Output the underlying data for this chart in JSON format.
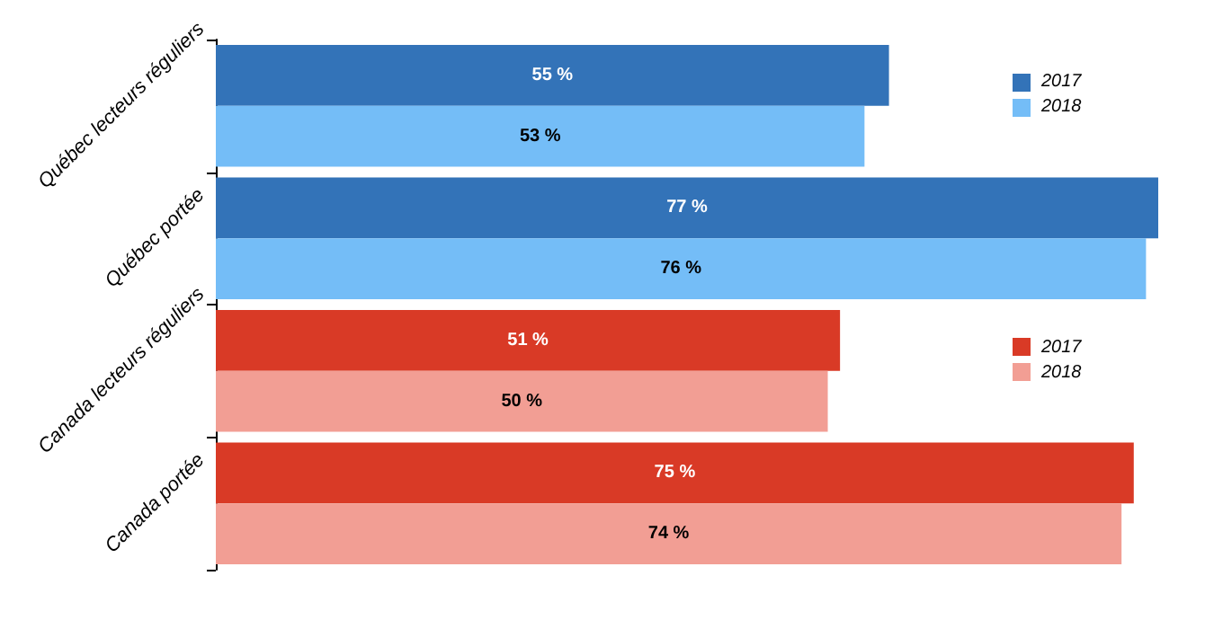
{
  "chart_data": {
    "type": "bar",
    "orientation": "horizontal",
    "categories": [
      "Québec lecteurs réguliers",
      "Québec portée",
      "Canada lecteurs réguliers",
      "Canada portée"
    ],
    "series": [
      {
        "name": "2017",
        "colors": [
          "#3373b8",
          "#3373b8",
          "#d93a26",
          "#d93a26"
        ],
        "values": [
          55,
          77,
          51,
          75
        ],
        "value_labels": [
          "55 %",
          "77 %",
          "51 %",
          "75 %"
        ]
      },
      {
        "name": "2018",
        "colors": [
          "#74bdf7",
          "#74bdf7",
          "#f29e94",
          "#f29e94"
        ],
        "values": [
          53,
          76,
          50,
          74
        ],
        "value_labels": [
          "53 %",
          "76 %",
          "50 %",
          "74 %"
        ]
      }
    ],
    "legend": "right",
    "grid": false
  }
}
